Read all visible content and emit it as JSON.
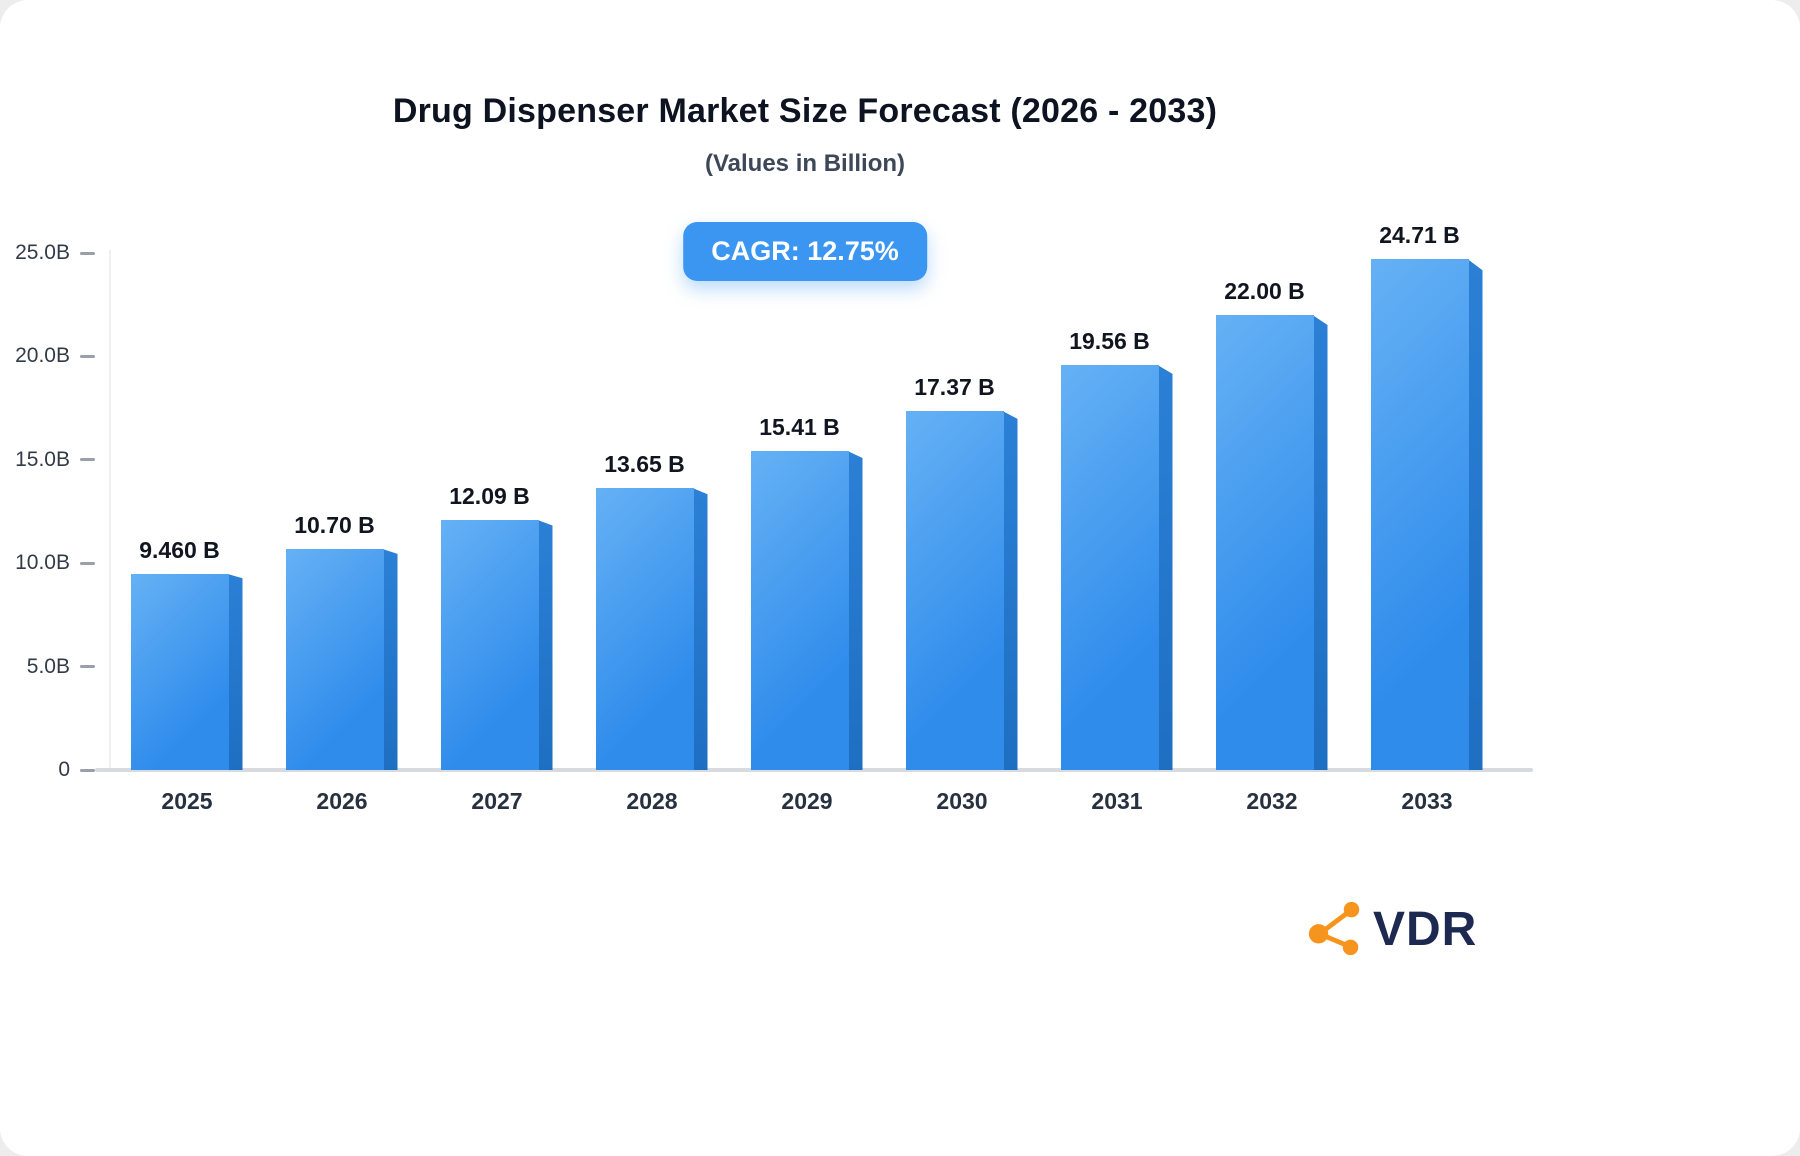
{
  "header": {
    "title": "Drug Dispenser Market Size Forecast (2026 - 2033)",
    "subtitle": "(Values in Billion)"
  },
  "badge": {
    "label": "CAGR: 12.75%",
    "bg": "#3b96f2"
  },
  "chart_data": {
    "type": "bar",
    "title": "Drug Dispenser Market Size Forecast (2026 - 2033)",
    "subtitle": "(Values in Billion)",
    "xlabel": "",
    "ylabel": "",
    "ylim": [
      0,
      25
    ],
    "grid": false,
    "legend": "none",
    "categories": [
      "2025",
      "2026",
      "2027",
      "2028",
      "2029",
      "2030",
      "2031",
      "2032",
      "2033"
    ],
    "values": [
      9.46,
      10.7,
      12.09,
      13.65,
      15.41,
      17.37,
      19.56,
      22.0,
      24.71
    ],
    "value_labels": [
      "9.460 B",
      "10.70 B",
      "12.09 B",
      "13.65 B",
      "15.41 B",
      "17.37 B",
      "19.56 B",
      "22.00 B",
      "24.71 B"
    ],
    "y_ticks": [
      {
        "label": "25.0B",
        "value": 25
      },
      {
        "label": "20.0B",
        "value": 20
      },
      {
        "label": "15.0B",
        "value": 15
      },
      {
        "label": "10.0B",
        "value": 10
      },
      {
        "label": "5.0B",
        "value": 5
      },
      {
        "label": "0",
        "value": 0
      }
    ],
    "bar_front_colors": [
      "#66b1f5",
      "#2f8ceb"
    ],
    "bar_side_colors": [
      "#2b80d6",
      "#1e6fc2"
    ]
  },
  "logo": {
    "text": "VDR",
    "icon": "network-nodes-icon",
    "icon_color": "#F7941E",
    "text_color": "#1d2950"
  }
}
